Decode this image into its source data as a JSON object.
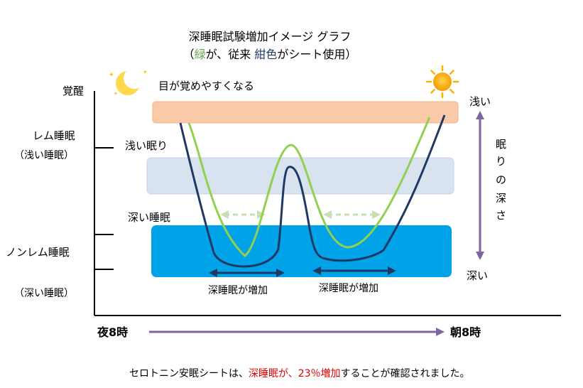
{
  "title": {
    "line1": "深睡眠試験増加イメージ グラフ",
    "line2_open": "（",
    "line2_green": "緑",
    "line2_mid": "が、従来  ",
    "line2_navy": "紺色",
    "line2_close": "がシート使用）"
  },
  "y_levels": {
    "awake": "覚醒",
    "rem": "レム睡眠",
    "rem_sub": "（浅い睡眠）",
    "nonrem": "ノンレム睡眠",
    "nonrem_sub": "（深い睡眠）"
  },
  "zones": {
    "awake_note": "目が覚めやすくなる",
    "light_sleep": "浅い眠り",
    "deep_sleep": "深い睡眠"
  },
  "depth_scale": {
    "shallow": "浅い",
    "label_chars": [
      "眠",
      "り",
      "の",
      "深",
      "さ"
    ],
    "deep": "深い"
  },
  "annotations": {
    "deep_increase_1": "深睡眠が増加",
    "deep_increase_2": "深睡眠が増加"
  },
  "time_axis": {
    "start": "夜8時",
    "end": "朝8時"
  },
  "caption": {
    "prefix": "セロトニン安眠シートは、",
    "highlight": "深睡眠が、23％増加",
    "suffix": "することが確認されました。"
  },
  "colors": {
    "conventional_line": "#92d050",
    "sheet_line": "#1f3864",
    "awake_band": "#f9c9a8",
    "light_band": "#d9e3ef",
    "deep_band": "#00a3e8",
    "depth_arrow": "#8064a2",
    "highlight_text": "#e00000"
  }
}
